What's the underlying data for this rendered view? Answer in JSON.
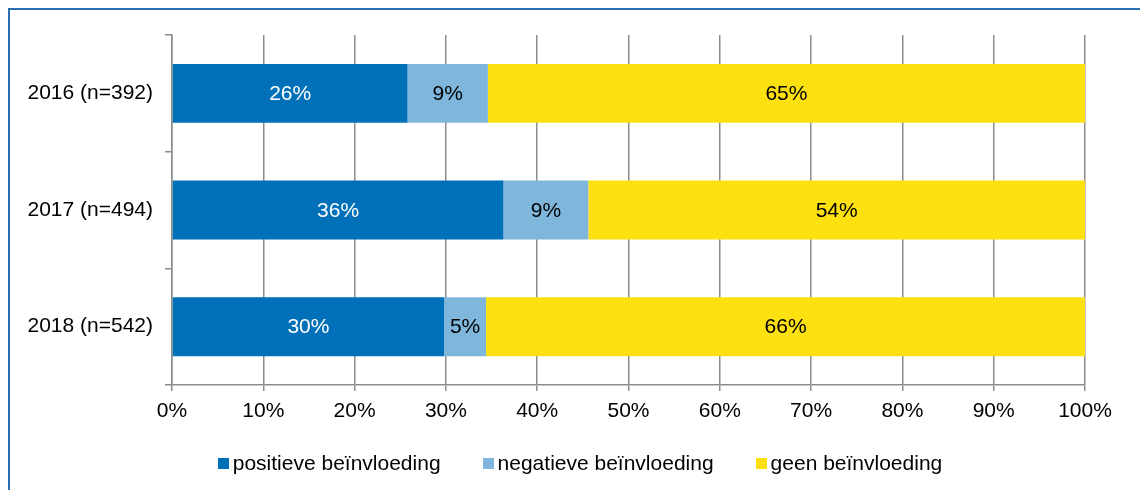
{
  "chart_data": {
    "type": "bar",
    "orientation": "horizontal",
    "stacked": true,
    "categories": [
      "2016 (n=392)",
      "2017 (n=494)",
      "2018 (n=542)"
    ],
    "series": [
      {
        "name": "positieve beïnvloeding",
        "color": "#0070b8",
        "values": [
          25.8,
          36.3,
          29.8
        ],
        "value_labels": [
          "26%",
          "36%",
          "30%"
        ]
      },
      {
        "name": "negatieve beïnvloeding",
        "color": "#7fb6dc",
        "values": [
          8.8,
          9.3,
          4.6
        ],
        "value_labels": [
          "9%",
          "9%",
          "5%"
        ]
      },
      {
        "name": "geen beïnvloeding",
        "color": "#fde00f",
        "values": [
          65.4,
          54.4,
          65.6
        ],
        "value_labels": [
          "65%",
          "54%",
          "66%"
        ]
      }
    ],
    "xlim": [
      0,
      100
    ],
    "xticks": [
      {
        "value": 0,
        "label": "0%"
      },
      {
        "value": 10,
        "label": "10%"
      },
      {
        "value": 20,
        "label": "20%"
      },
      {
        "value": 30,
        "label": "30%"
      },
      {
        "value": 40,
        "label": "40%"
      },
      {
        "value": 50,
        "label": "50%"
      },
      {
        "value": 60,
        "label": "60%"
      },
      {
        "value": 70,
        "label": "70%"
      },
      {
        "value": 80,
        "label": "80%"
      },
      {
        "value": 90,
        "label": "90%"
      },
      {
        "value": 100,
        "label": "100%"
      }
    ],
    "grid": "x",
    "legend": "bottom"
  }
}
